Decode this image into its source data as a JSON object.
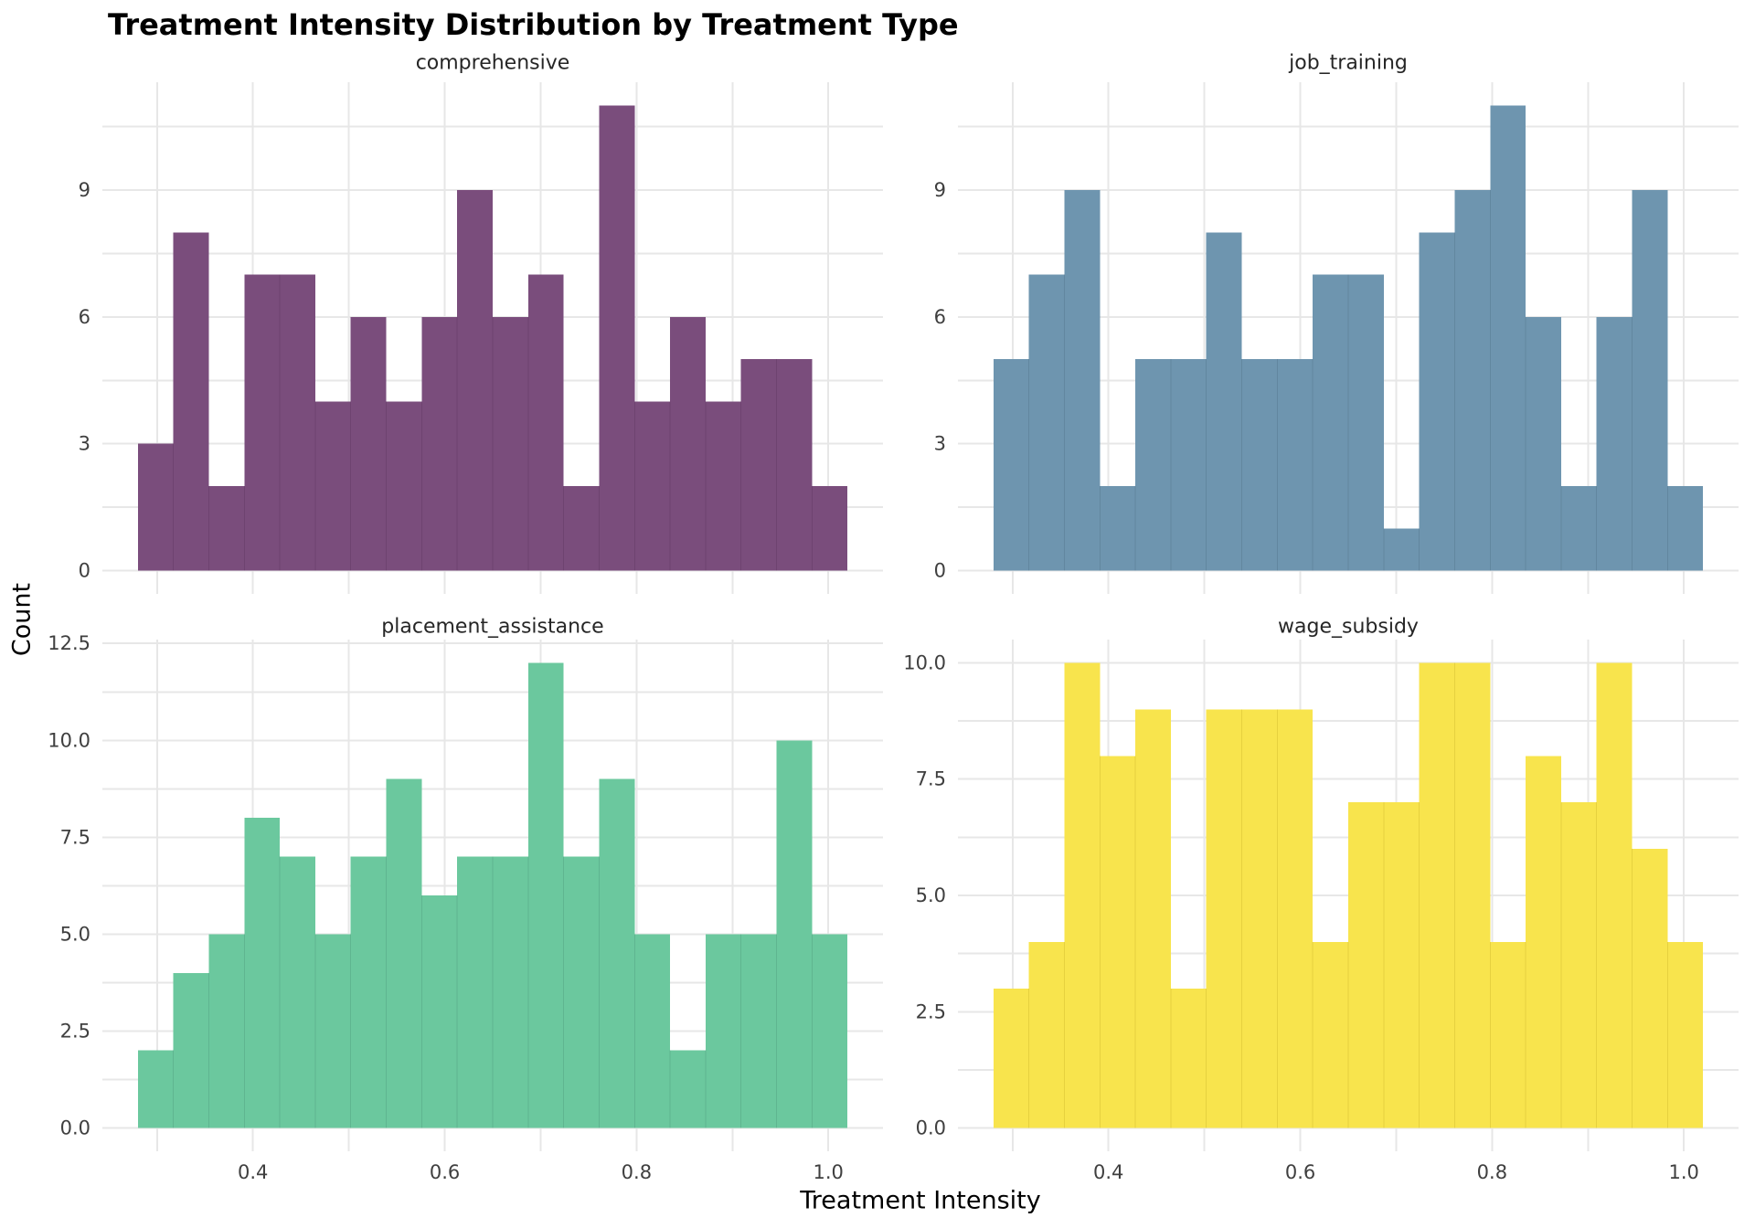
{
  "title": "Treatment Intensity Distribution by Treatment Type",
  "xlabel": "Treatment Intensity",
  "ylabel": "Count",
  "chart_data": {
    "type": "bar",
    "subtype": "faceted-histogram",
    "title": "Treatment Intensity Distribution by Treatment Type",
    "xlabel": "Treatment Intensity",
    "ylabel": "Count",
    "grid": true,
    "legend": false,
    "bin_start": 0.28,
    "bin_width": 0.037,
    "n_bins": 20,
    "xlim": [
      0.243,
      1.057
    ],
    "x_tick_values": [
      0.4,
      0.6,
      0.8,
      1.0
    ],
    "x_tick_labels": [
      "0.4",
      "0.6",
      "0.8",
      "1.0"
    ],
    "x_gridline_values": [
      0.3,
      0.4,
      0.5,
      0.6,
      0.7,
      0.8,
      0.9,
      1.0
    ],
    "gridline_color": "#e7e7e7",
    "tick_label_color": "#3f3f3f",
    "facets": [
      {
        "label": "comprehensive",
        "color": "#7a4d7c",
        "seam_color": "#6e4370",
        "counts": [
          3,
          8,
          2,
          7,
          7,
          4,
          6,
          4,
          6,
          9,
          6,
          7,
          2,
          11,
          4,
          6,
          4,
          5,
          5,
          2
        ],
        "ymax": 11,
        "y_tick_values": [
          0,
          3,
          6,
          9
        ],
        "y_tick_labels": [
          "0",
          "3",
          "6",
          "9"
        ],
        "y_minor_step": 1.5
      },
      {
        "label": "job_training",
        "color": "#6e95af",
        "seam_color": "#62879f",
        "counts": [
          5,
          7,
          9,
          2,
          5,
          5,
          8,
          5,
          5,
          7,
          7,
          1,
          8,
          9,
          11,
          6,
          2,
          6,
          9,
          2
        ],
        "ymax": 11,
        "y_tick_values": [
          0,
          3,
          6,
          9
        ],
        "y_tick_labels": [
          "0",
          "3",
          "6",
          "9"
        ],
        "y_minor_step": 1.5
      },
      {
        "label": "placement_assistance",
        "color": "#6bc89e",
        "seam_color": "#5fb590",
        "counts": [
          2,
          4,
          5,
          8,
          7,
          5,
          7,
          9,
          6,
          7,
          7,
          12,
          7,
          9,
          5,
          2,
          5,
          5,
          10,
          5
        ],
        "ymax": 12,
        "y_tick_values": [
          0,
          2.5,
          5,
          7.5,
          10,
          12.5
        ],
        "y_tick_labels": [
          "0.0",
          "2.5",
          "5.0",
          "7.5",
          "10.0",
          "12.5"
        ],
        "y_minor_step": 1.25
      },
      {
        "label": "wage_subsidy",
        "color": "#f8e44d",
        "seam_color": "#e6d13f",
        "counts": [
          3,
          4,
          10,
          8,
          9,
          3,
          9,
          9,
          9,
          4,
          7,
          7,
          10,
          10,
          4,
          8,
          7,
          10,
          6,
          4
        ],
        "ymax": 10,
        "y_tick_values": [
          0,
          2.5,
          5,
          7.5,
          10
        ],
        "y_tick_labels": [
          "0.0",
          "2.5",
          "5.0",
          "7.5",
          "10.0"
        ],
        "y_minor_step": 1.25
      }
    ]
  }
}
